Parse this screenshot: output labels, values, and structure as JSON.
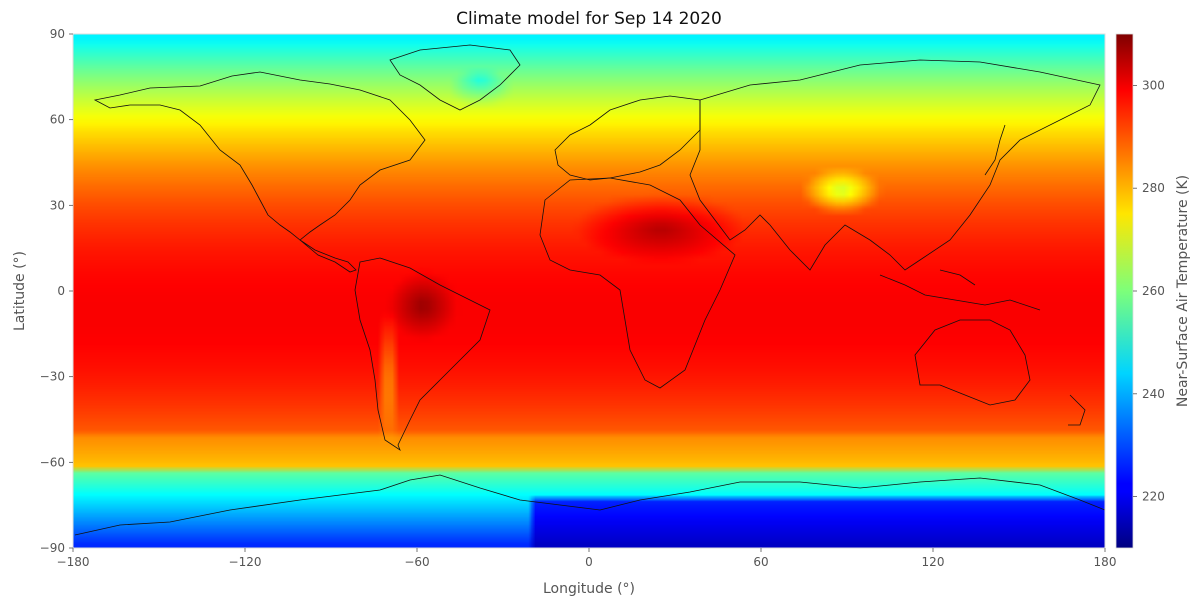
{
  "chart_data": {
    "type": "heatmap",
    "title": "Climate model for Sep 14 2020",
    "xlabel": "Longitude (°)",
    "ylabel": "Latitude (°)",
    "colorbar_label": "Near-Surface Air Temperature (K)",
    "xlim": [
      -180,
      180
    ],
    "ylim": [
      -90,
      90
    ],
    "x_ticks": [
      -180,
      -120,
      -60,
      0,
      60,
      120,
      180
    ],
    "x_tick_labels": [
      "−180",
      "−120",
      "−60",
      "0",
      "60",
      "120",
      "180"
    ],
    "y_ticks": [
      90,
      60,
      30,
      0,
      -30,
      -60,
      -90
    ],
    "y_tick_labels": [
      "90",
      "60",
      "30",
      "0",
      "−30",
      "−60",
      "−90"
    ],
    "colorbar_range": [
      210,
      310
    ],
    "colorbar_ticks": [
      220,
      240,
      260,
      280,
      300
    ],
    "colorbar_tick_labels": [
      "220",
      "240",
      "260",
      "280",
      "300"
    ],
    "colormap": "jet",
    "grid": false,
    "overlay": "coastlines"
  }
}
